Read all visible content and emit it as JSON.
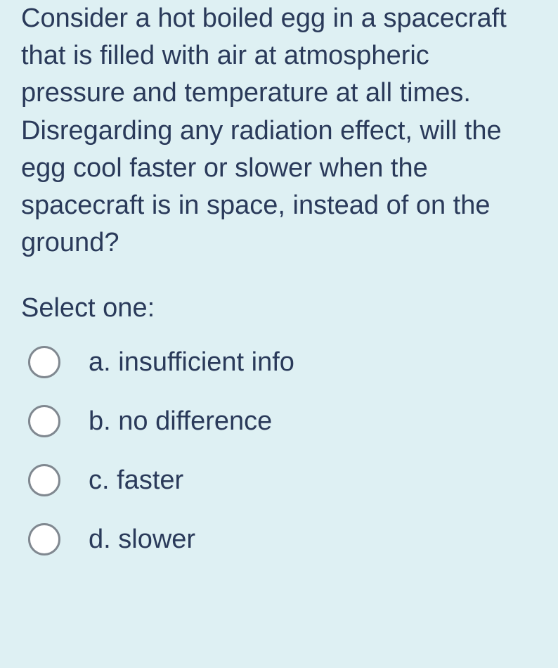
{
  "colors": {
    "background": "#def0f3",
    "text": "#2a3a5a",
    "radio_border": "#808890",
    "radio_fill": "#ffffff"
  },
  "typography": {
    "font_family": "Arial, Helvetica, sans-serif",
    "question_fontsize": 38,
    "option_fontsize": 38
  },
  "question": {
    "text": "Consider a hot boiled egg in a spacecraft that is filled with air at atmospheric pressure and temperature at all times. Disregarding any radiation effect, will the egg cool faster or slower when the spacecraft is in space, instead of on the ground?",
    "prompt": "Select one:"
  },
  "options": [
    {
      "letter": "a.",
      "text": "insufficient info",
      "selected": false
    },
    {
      "letter": "b.",
      "text": "no difference",
      "selected": false
    },
    {
      "letter": "c.",
      "text": "faster",
      "selected": false
    },
    {
      "letter": "d.",
      "text": "slower",
      "selected": false
    }
  ]
}
